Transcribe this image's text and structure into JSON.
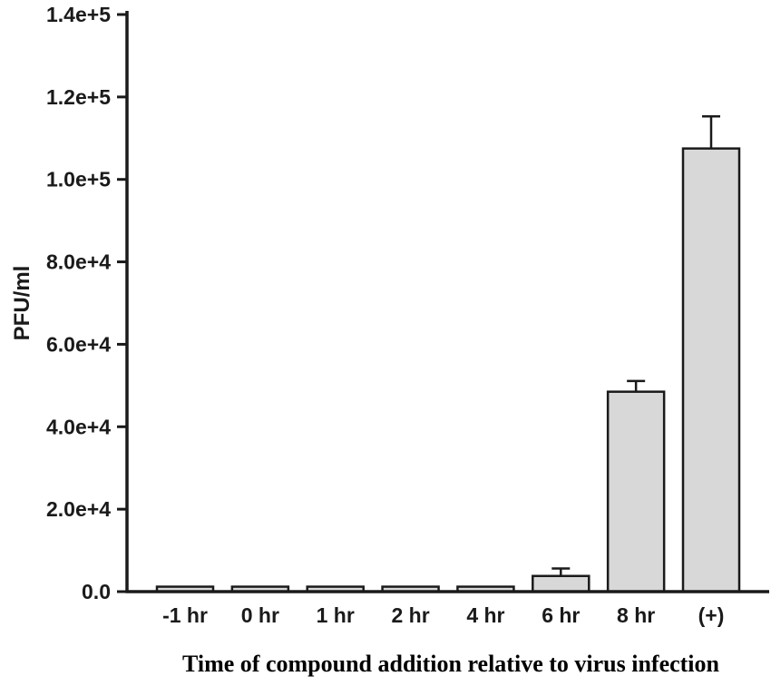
{
  "chart_data": {
    "type": "bar",
    "title": "",
    "xlabel": "Time of compound addition relative to virus infection",
    "ylabel": "PFU/ml",
    "categories": [
      "-1 hr",
      "0 hr",
      "1 hr",
      "2 hr",
      "4 hr",
      "6 hr",
      "8 hr",
      "(+)"
    ],
    "values": [
      1200,
      1200,
      1200,
      1200,
      1200,
      3800,
      48500,
      107500
    ],
    "errors_plus": [
      0,
      0,
      0,
      0,
      0,
      1800,
      2600,
      7800
    ],
    "ylim": [
      0,
      140000
    ],
    "yticks": [
      0,
      20000,
      40000,
      60000,
      80000,
      100000,
      120000,
      140000
    ],
    "ytick_labels": [
      "0.0",
      "2.0e+4",
      "4.0e+4",
      "6.0e+4",
      "8.0e+4",
      "1.0e+5",
      "1.2e+5",
      "1.4e+5"
    ],
    "bar_fill": "#d8d8d8",
    "bar_stroke": "#1a1a1a",
    "axis_color": "#1a1a1a",
    "grid": false,
    "legend": false
  }
}
